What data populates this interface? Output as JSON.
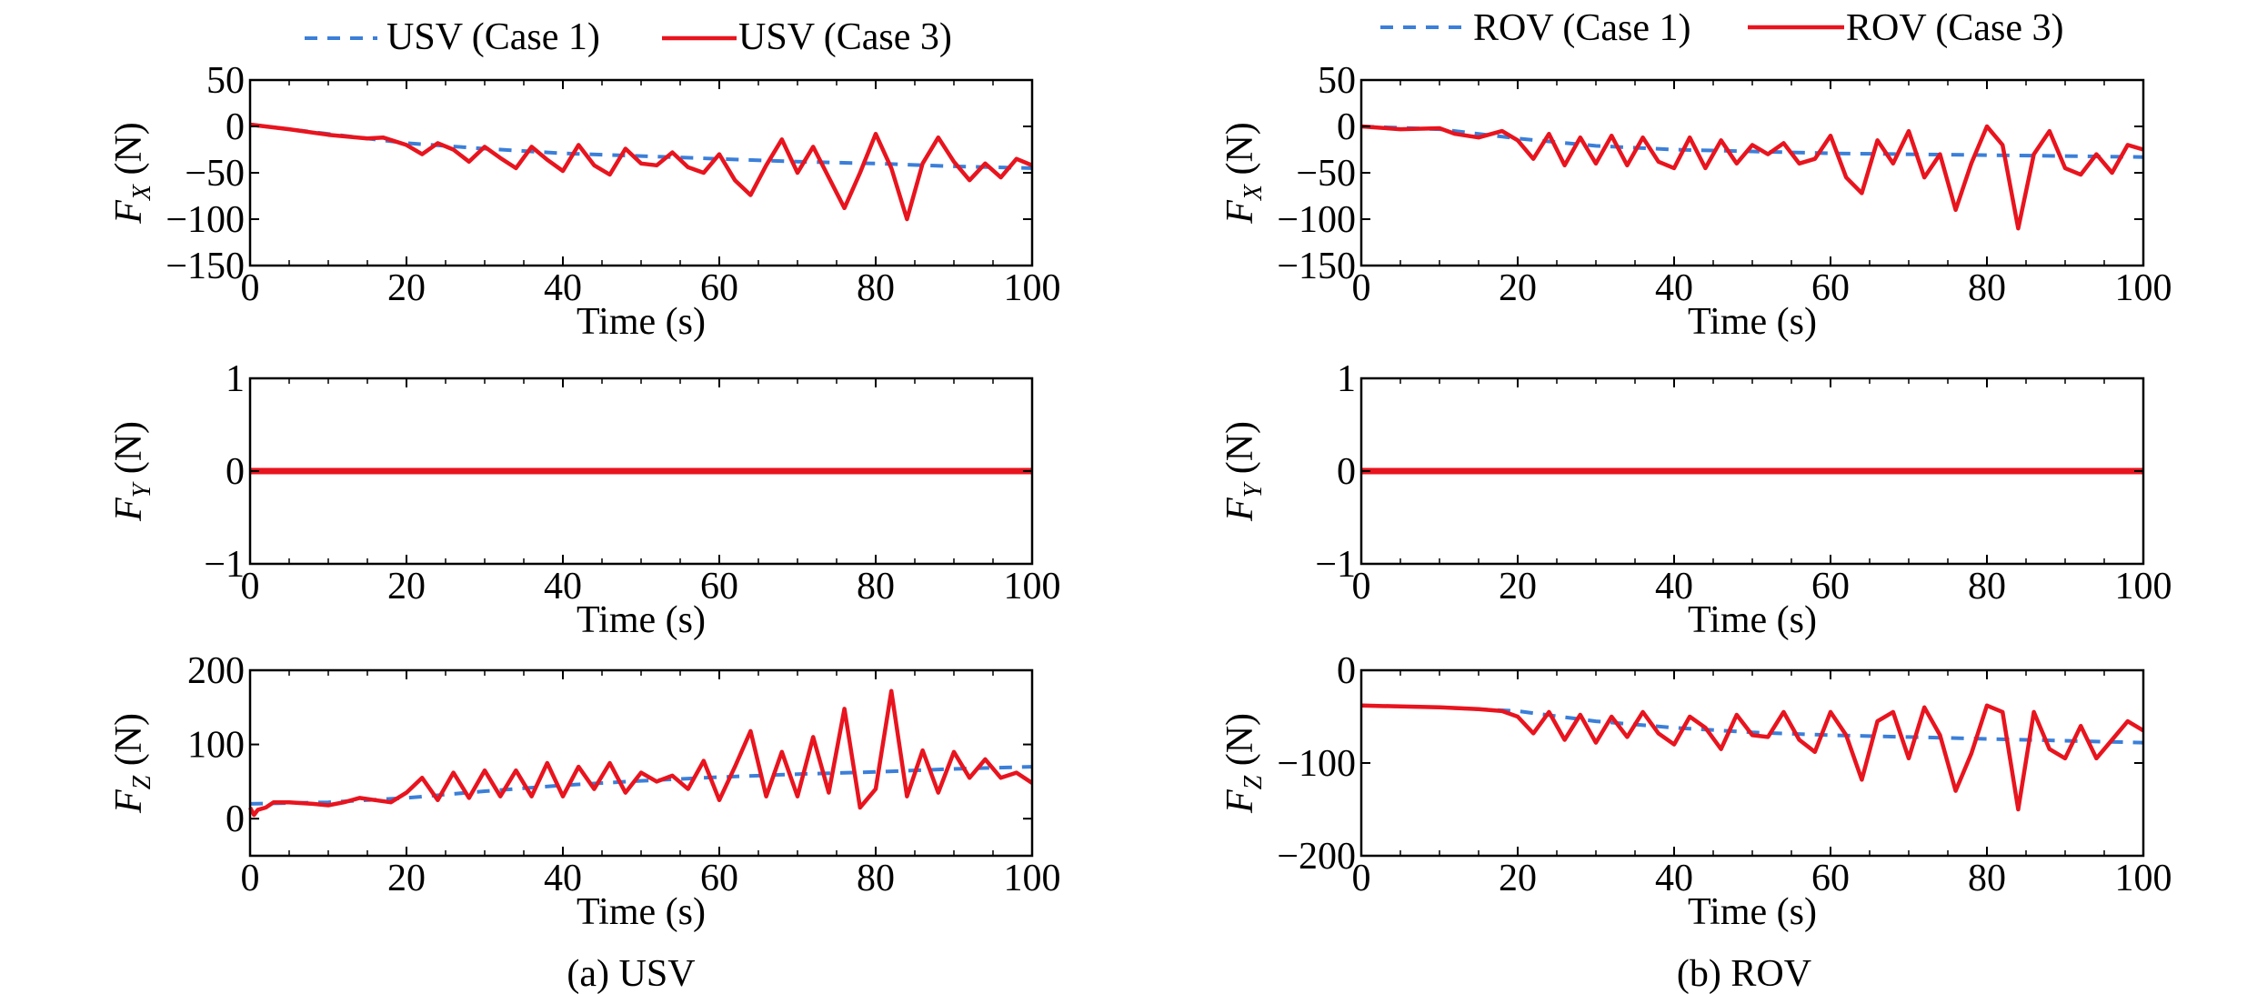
{
  "colors": {
    "case1": "#3b7fd9",
    "case3": "#e8141e",
    "axis": "#000000"
  },
  "panels": [
    {
      "caption": "(a) USV",
      "legend": [
        "USV (Case 1)",
        "USV (Case 3)"
      ]
    },
    {
      "caption": "(b) ROV",
      "legend": [
        "ROV (Case 1)",
        "ROV (Case 3)"
      ]
    }
  ],
  "chart_data": [
    {
      "type": "line",
      "panel": "USV",
      "row": "FX",
      "xlabel": "Time (s)",
      "ylabel_main": "F",
      "ylabel_sub": "X",
      "ylabel_unit": "(N)",
      "xlim": [
        0,
        100
      ],
      "ylim": [
        -150,
        50
      ],
      "xticks": [
        0,
        20,
        40,
        60,
        80,
        100
      ],
      "yticks": [
        50,
        0,
        -50,
        -100,
        -150
      ],
      "xtick_labels": [
        "0",
        "20",
        "40",
        "60",
        "80",
        "100"
      ],
      "ytick_labels": [
        "50",
        "0",
        "−50",
        "−100",
        "−150"
      ],
      "series": [
        {
          "name": "USV (Case 1)",
          "style": "dashed",
          "x": [
            0,
            10,
            20,
            30,
            40,
            50,
            60,
            70,
            80,
            90,
            100
          ],
          "y": [
            2,
            -8,
            -18,
            -24,
            -29,
            -32,
            -35,
            -38,
            -40,
            -43,
            -45
          ]
        },
        {
          "name": "USV (Case 3)",
          "style": "solid",
          "x": [
            0,
            5,
            10,
            15,
            17,
            20,
            22,
            24,
            26,
            28,
            30,
            32,
            34,
            36,
            38,
            40,
            42,
            44,
            46,
            48,
            50,
            52,
            54,
            56,
            58,
            60,
            62,
            64,
            66,
            68,
            70,
            72,
            74,
            76,
            78,
            80,
            82,
            84,
            86,
            88,
            90,
            92,
            94,
            96,
            98,
            100
          ],
          "y": [
            2,
            -3,
            -9,
            -13,
            -12,
            -20,
            -30,
            -18,
            -25,
            -38,
            -22,
            -34,
            -45,
            -22,
            -36,
            -48,
            -20,
            -42,
            -52,
            -24,
            -40,
            -42,
            -28,
            -44,
            -50,
            -30,
            -58,
            -74,
            -42,
            -14,
            -50,
            -22,
            -55,
            -88,
            -50,
            -8,
            -45,
            -100,
            -40,
            -12,
            -38,
            -58,
            -40,
            -55,
            -35,
            -42
          ]
        }
      ]
    },
    {
      "type": "line",
      "panel": "USV",
      "row": "FY",
      "xlabel": "Time (s)",
      "ylabel_main": "F",
      "ylabel_sub": "Y",
      "ylabel_unit": "(N)",
      "xlim": [
        0,
        100
      ],
      "ylim": [
        -1,
        1
      ],
      "xticks": [
        0,
        20,
        40,
        60,
        80,
        100
      ],
      "yticks": [
        1,
        0,
        -1
      ],
      "xtick_labels": [
        "0",
        "20",
        "40",
        "60",
        "80",
        "100"
      ],
      "ytick_labels": [
        "1",
        "0",
        "−1"
      ],
      "series": [
        {
          "name": "USV (Case 1)",
          "style": "dashed",
          "x": [
            0,
            100
          ],
          "y": [
            0,
            0
          ]
        },
        {
          "name": "USV (Case 3)",
          "style": "solid",
          "x": [
            0,
            100
          ],
          "y": [
            0,
            0
          ]
        }
      ]
    },
    {
      "type": "line",
      "panel": "USV",
      "row": "FZ",
      "xlabel": "Time (s)",
      "ylabel_main": "F",
      "ylabel_sub": "Z",
      "ylabel_unit": "(N)",
      "xlim": [
        0,
        100
      ],
      "ylim": [
        -50,
        200
      ],
      "xticks": [
        0,
        20,
        40,
        60,
        80,
        100
      ],
      "yticks": [
        200,
        100,
        0
      ],
      "xtick_labels": [
        "0",
        "20",
        "40",
        "60",
        "80",
        "100"
      ],
      "ytick_labels": [
        "200",
        "100",
        "0"
      ],
      "series": [
        {
          "name": "USV (Case 1)",
          "style": "dashed",
          "x": [
            0,
            10,
            20,
            30,
            40,
            50,
            60,
            70,
            80,
            90,
            100
          ],
          "y": [
            20,
            22,
            28,
            37,
            45,
            51,
            56,
            60,
            63,
            67,
            70
          ]
        },
        {
          "name": "USV (Case 3)",
          "style": "solid",
          "x": [
            0,
            0.5,
            1,
            2,
            3,
            5,
            8,
            10,
            12,
            14,
            16,
            18,
            20,
            22,
            24,
            26,
            28,
            30,
            32,
            34,
            36,
            38,
            40,
            42,
            44,
            46,
            48,
            50,
            52,
            54,
            56,
            58,
            60,
            62,
            64,
            66,
            68,
            70,
            72,
            74,
            76,
            78,
            80,
            82,
            84,
            86,
            88,
            90,
            92,
            94,
            96,
            98,
            100
          ],
          "y": [
            15,
            5,
            12,
            15,
            22,
            22,
            20,
            18,
            22,
            28,
            25,
            22,
            35,
            55,
            25,
            62,
            28,
            65,
            30,
            65,
            30,
            75,
            30,
            70,
            40,
            75,
            35,
            62,
            50,
            58,
            40,
            78,
            25,
            70,
            118,
            30,
            90,
            30,
            110,
            35,
            148,
            15,
            40,
            172,
            30,
            92,
            35,
            90,
            55,
            80,
            55,
            62,
            48
          ]
        }
      ]
    },
    {
      "type": "line",
      "panel": "ROV",
      "row": "FX",
      "xlabel": "Time (s)",
      "ylabel_main": "F",
      "ylabel_sub": "X",
      "ylabel_unit": "(N)",
      "xlim": [
        0,
        100
      ],
      "ylim": [
        -150,
        50
      ],
      "xticks": [
        0,
        20,
        40,
        60,
        80,
        100
      ],
      "yticks": [
        50,
        0,
        -50,
        -100,
        -150
      ],
      "xtick_labels": [
        "0",
        "20",
        "40",
        "60",
        "80",
        "100"
      ],
      "ytick_labels": [
        "50",
        "0",
        "−50",
        "−100",
        "−150"
      ],
      "series": [
        {
          "name": "ROV (Case 1)",
          "style": "dashed",
          "x": [
            0,
            10,
            20,
            30,
            40,
            50,
            60,
            70,
            80,
            90,
            100
          ],
          "y": [
            0,
            -3,
            -13,
            -21,
            -25,
            -27,
            -29,
            -30,
            -31,
            -32,
            -33
          ]
        },
        {
          "name": "ROV (Case 3)",
          "style": "solid",
          "x": [
            0,
            5,
            10,
            12,
            15,
            18,
            20,
            22,
            24,
            26,
            28,
            30,
            32,
            34,
            36,
            38,
            40,
            42,
            44,
            46,
            48,
            50,
            52,
            54,
            56,
            58,
            60,
            62,
            64,
            66,
            68,
            70,
            72,
            74,
            76,
            78,
            80,
            82,
            84,
            86,
            88,
            90,
            92,
            94,
            96,
            98,
            100
          ],
          "y": [
            0,
            -3,
            -2,
            -8,
            -12,
            -5,
            -15,
            -35,
            -8,
            -42,
            -12,
            -40,
            -10,
            -42,
            -12,
            -38,
            -45,
            -12,
            -45,
            -15,
            -40,
            -20,
            -30,
            -18,
            -40,
            -35,
            -10,
            -55,
            -72,
            -15,
            -40,
            -5,
            -55,
            -30,
            -90,
            -40,
            0,
            -20,
            -110,
            -30,
            -5,
            -45,
            -52,
            -30,
            -50,
            -20,
            -25
          ]
        }
      ]
    },
    {
      "type": "line",
      "panel": "ROV",
      "row": "FY",
      "xlabel": "Time (s)",
      "ylabel_main": "F",
      "ylabel_sub": "Y",
      "ylabel_unit": "(N)",
      "xlim": [
        0,
        100
      ],
      "ylim": [
        -1,
        1
      ],
      "xticks": [
        0,
        20,
        40,
        60,
        80,
        100
      ],
      "yticks": [
        1,
        0,
        -1
      ],
      "xtick_labels": [
        "0",
        "20",
        "40",
        "60",
        "80",
        "100"
      ],
      "ytick_labels": [
        "1",
        "0",
        "−1"
      ],
      "series": [
        {
          "name": "ROV (Case 1)",
          "style": "dashed",
          "x": [
            0,
            100
          ],
          "y": [
            0,
            0
          ]
        },
        {
          "name": "ROV (Case 3)",
          "style": "solid",
          "x": [
            0,
            100
          ],
          "y": [
            0,
            0
          ]
        }
      ]
    },
    {
      "type": "line",
      "panel": "ROV",
      "row": "FZ",
      "xlabel": "Time (s)",
      "ylabel_main": "F",
      "ylabel_sub": "Z",
      "ylabel_unit": "(N)",
      "xlim": [
        0,
        100
      ],
      "ylim": [
        -200,
        0
      ],
      "xticks": [
        0,
        20,
        40,
        60,
        80,
        100
      ],
      "yticks": [
        0,
        -100,
        -200
      ],
      "xtick_labels": [
        "0",
        "20",
        "40",
        "60",
        "80",
        "100"
      ],
      "ytick_labels": [
        "0",
        "−100",
        "−200"
      ],
      "series": [
        {
          "name": "ROV (Case 1)",
          "style": "dashed",
          "x": [
            0,
            10,
            20,
            30,
            40,
            50,
            60,
            70,
            80,
            90,
            100
          ],
          "y": [
            -38,
            -40,
            -44,
            -55,
            -62,
            -67,
            -70,
            -72,
            -74,
            -76,
            -78
          ]
        },
        {
          "name": "ROV (Case 3)",
          "style": "solid",
          "x": [
            0,
            5,
            10,
            15,
            18,
            20,
            22,
            24,
            26,
            28,
            30,
            32,
            34,
            36,
            38,
            40,
            42,
            44,
            46,
            48,
            50,
            52,
            54,
            56,
            58,
            60,
            62,
            64,
            66,
            68,
            70,
            72,
            74,
            76,
            78,
            80,
            82,
            84,
            86,
            88,
            90,
            92,
            94,
            96,
            98,
            100
          ],
          "y": [
            -38,
            -39,
            -40,
            -42,
            -44,
            -50,
            -68,
            -45,
            -75,
            -48,
            -78,
            -50,
            -72,
            -45,
            -68,
            -80,
            -50,
            -62,
            -85,
            -48,
            -70,
            -72,
            -45,
            -75,
            -88,
            -45,
            -70,
            -118,
            -55,
            -45,
            -95,
            -40,
            -70,
            -130,
            -90,
            -38,
            -45,
            -150,
            -45,
            -85,
            -95,
            -60,
            -95,
            -75,
            -55,
            -65
          ]
        }
      ]
    }
  ]
}
